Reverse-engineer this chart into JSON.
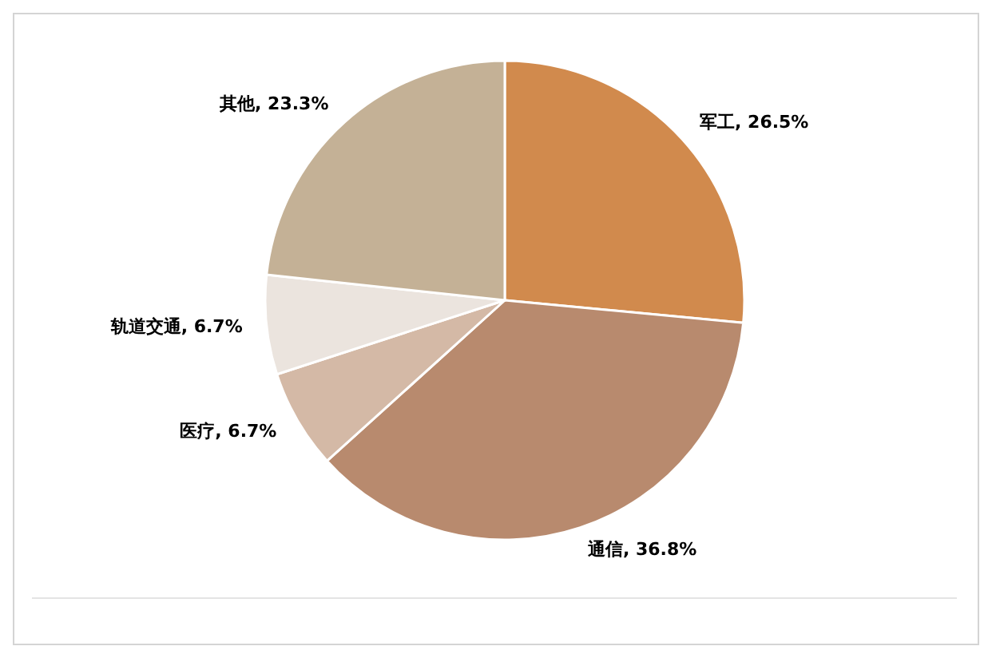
{
  "chart_data": {
    "type": "pie",
    "categories": [
      "军工",
      "通信",
      "医疗",
      "轨道交通",
      "其他"
    ],
    "values": [
      26.5,
      36.8,
      6.7,
      6.7,
      23.3
    ],
    "colors": [
      "#d18a4d",
      "#b88a6e",
      "#d4b9a6",
      "#ebe4de",
      "#c4b196"
    ],
    "value_labels": [
      "26.5%",
      "36.8%",
      "6.7%",
      "6.7%",
      "23.3%"
    ]
  }
}
